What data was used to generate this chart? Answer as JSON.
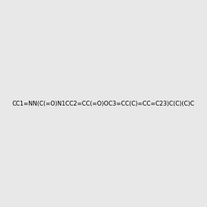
{
  "smiles": "CC1=NN(C(=O)N1CC2=CC(=O)OC3=CC(C)=CC=C23)C(C)(C)C",
  "title": "",
  "bg_color": "#e8e8e8",
  "bond_color": "#000000",
  "n_color": "#0000ff",
  "o_color": "#ff0000",
  "figsize": [
    3.0,
    3.0
  ],
  "dpi": 100
}
